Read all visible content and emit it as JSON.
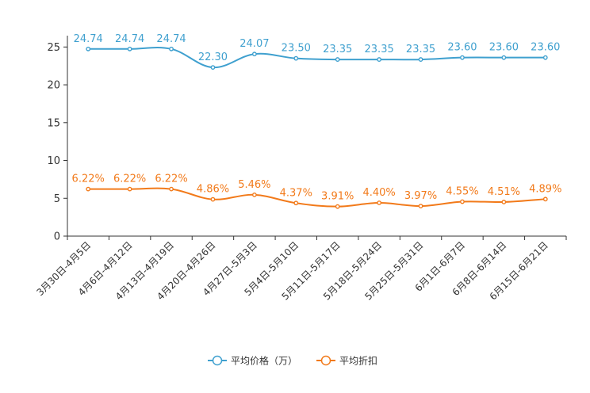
{
  "chart_data": {
    "type": "line",
    "categories": [
      "3月30日-4月5日",
      "4月6日-4月12日",
      "4月13日-4月19日",
      "4月20日-4月26日",
      "4月27日-5月3日",
      "5月4日-5月10日",
      "5月11日-5月17日",
      "5月18日-5月24日",
      "5月25日-5月31日",
      "6月1日-6月7日",
      "6月8日-6月14日",
      "6月15日-6月21日"
    ],
    "series": [
      {
        "name": "平均价格（万）",
        "color": "#3fa0cf",
        "values": [
          24.74,
          24.74,
          24.74,
          22.3,
          24.07,
          23.5,
          23.35,
          23.35,
          23.35,
          23.6,
          23.6,
          23.6
        ],
        "labels": [
          "24.74",
          "24.74",
          "24.74",
          "22.30",
          "24.07",
          "23.50",
          "23.35",
          "23.35",
          "23.35",
          "23.60",
          "23.60",
          "23.60"
        ]
      },
      {
        "name": "平均折扣",
        "color": "#f27a1a",
        "values": [
          6.22,
          6.22,
          6.22,
          4.86,
          5.46,
          4.37,
          3.91,
          4.4,
          3.97,
          4.55,
          4.51,
          4.89
        ],
        "labels": [
          "6.22%",
          "6.22%",
          "6.22%",
          "4.86%",
          "5.46%",
          "4.37%",
          "3.91%",
          "4.40%",
          "3.97%",
          "4.55%",
          "4.51%",
          "4.89%"
        ]
      }
    ],
    "yticks": [
      "0",
      "5",
      "10",
      "15",
      "20",
      "25"
    ],
    "ylim": [
      0,
      26.5
    ],
    "title": "",
    "xlabel": "",
    "ylabel": "",
    "grid": false,
    "legend_position": "bottom-center"
  }
}
